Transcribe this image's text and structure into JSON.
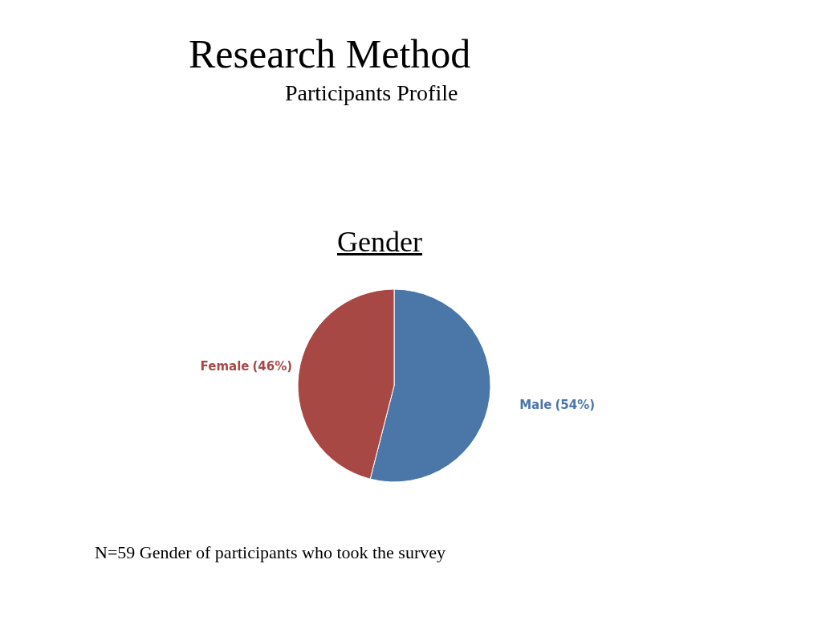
{
  "chart_data": {
    "type": "pie",
    "title": "Research Method",
    "subtitle": "Participants Profile",
    "annotations": [
      "Gender",
      "N=59  Gender of participants who took the survey"
    ],
    "categories": [
      "Male",
      "Female"
    ],
    "values": [
      54,
      46
    ],
    "colors": [
      "#4a76a8",
      "#a84845"
    ],
    "value_labels": [
      "(54%)",
      "(46%)"
    ]
  }
}
